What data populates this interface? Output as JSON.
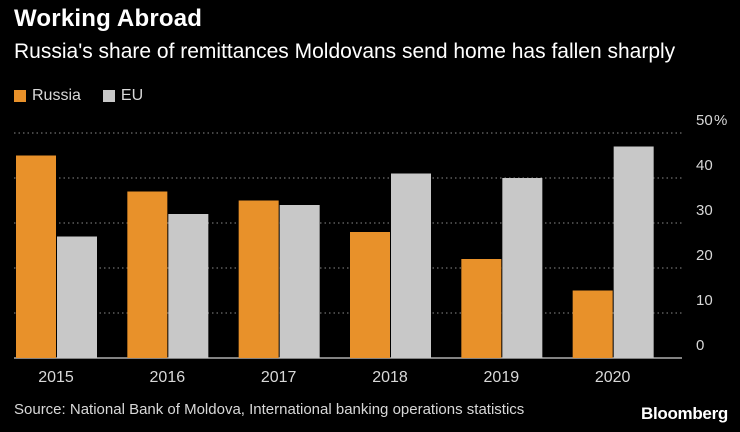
{
  "header": {
    "title": "Working Abroad",
    "subtitle": "Russia's share of remittances Moldovans send home has fallen sharply"
  },
  "colors": {
    "russia": "#E8912A",
    "eu": "#C8C8C8",
    "grid": "#8a8a8a",
    "text": "#d8d8d8"
  },
  "chart_data": {
    "type": "bar",
    "title": "Working Abroad",
    "subtitle": "Russia's share of remittances Moldovans send home has fallen sharply",
    "categories": [
      "2015",
      "2016",
      "2017",
      "2018",
      "2019",
      "2020"
    ],
    "series": [
      {
        "name": "Russia",
        "values": [
          45,
          37,
          35,
          28,
          22,
          15
        ]
      },
      {
        "name": "EU",
        "values": [
          27,
          32,
          34,
          41,
          40,
          47
        ]
      }
    ],
    "y_ticks": [
      "0",
      "10",
      "20",
      "30",
      "40",
      "50"
    ],
    "y_unit": "%",
    "ylim": [
      0,
      50
    ],
    "xlabel": "",
    "ylabel": "",
    "legend_position": "top-left",
    "grid": true
  },
  "footer": {
    "source": "Source: National Bank of Moldova, International banking operations statistics",
    "brand": "Bloomberg"
  }
}
